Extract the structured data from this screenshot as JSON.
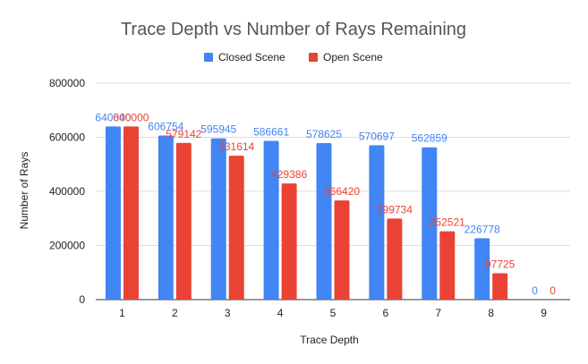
{
  "chart_data": {
    "type": "bar",
    "title": "Trace Depth vs Number of Rays Remaining",
    "xlabel": "Trace Depth",
    "ylabel": "Number of Rays",
    "categories": [
      "1",
      "2",
      "3",
      "4",
      "5",
      "6",
      "7",
      "8",
      "9"
    ],
    "series": [
      {
        "name": "Closed Scene",
        "color": "#4285f4",
        "values": [
          640000,
          606754,
          595945,
          586661,
          578625,
          570697,
          562859,
          226778,
          0
        ],
        "labels": [
          "640000",
          "606754",
          "595945",
          "586661",
          "578625",
          "570697",
          "562859",
          "226778",
          "0"
        ]
      },
      {
        "name": "Open Scene",
        "color": "#ea4335",
        "values": [
          640000,
          579142,
          531614,
          429386,
          366420,
          299734,
          252521,
          97725,
          0
        ],
        "labels": [
          "640000",
          "579142",
          "531614",
          "429386",
          "366420",
          "299734",
          "252521",
          "97725",
          "0"
        ]
      }
    ],
    "ylim": [
      0,
      800000
    ],
    "yticks": [
      "0",
      "200000",
      "400000",
      "600000",
      "800000"
    ],
    "grid": true,
    "legend_position": "top"
  }
}
